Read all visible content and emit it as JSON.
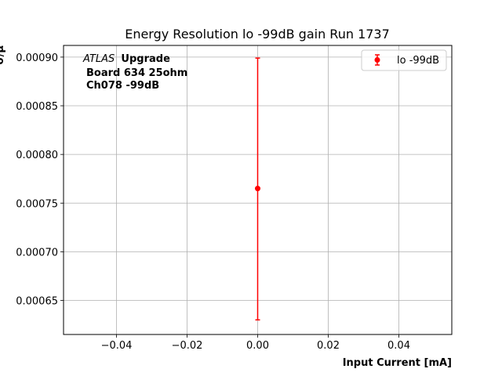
{
  "chart_data": {
    "type": "scatter",
    "title": "Energy Resolution lo -99dB gain Run 1737",
    "xlabel": "Input Current [mA]",
    "ylabel": "σ/μ",
    "xlim": [
      -0.055,
      0.055
    ],
    "ylim": [
      0.000615,
      0.000912
    ],
    "xticks": [
      -0.04,
      -0.02,
      0.0,
      0.02,
      0.04
    ],
    "xtick_labels": [
      "−0.04",
      "−0.02",
      "0.00",
      "0.02",
      "0.04"
    ],
    "yticks": [
      0.00065,
      0.0007,
      0.00075,
      0.0008,
      0.00085,
      0.0009
    ],
    "ytick_labels": [
      "0.00065",
      "0.00070",
      "0.00075",
      "0.00080",
      "0.00085",
      "0.00090"
    ],
    "grid": true,
    "legend_position": "top-right",
    "series": [
      {
        "name": "lo -99dB",
        "color": "#ff0000",
        "points": [
          {
            "x": 0.0,
            "y": 0.000765,
            "yerr_low": 0.00063,
            "yerr_high": 0.000899
          }
        ]
      }
    ],
    "annotations": {
      "atlas_italic": "ATLAS",
      "atlas_bold": "Upgrade",
      "line2": "Board 634 25ohm",
      "line3": "Ch078 -99dB"
    }
  }
}
